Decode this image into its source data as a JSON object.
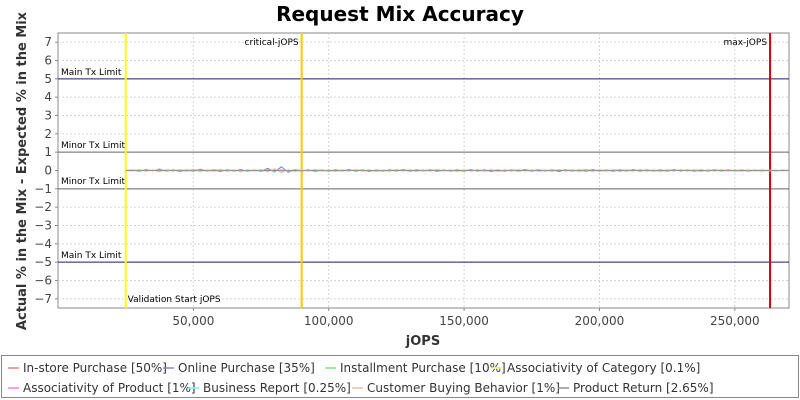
{
  "chart_data": {
    "type": "line",
    "title": "Request Mix Accuracy",
    "xlabel": "jOPS",
    "ylabel": "Actual % in the Mix - Expected % in the Mix",
    "xlim": [
      0,
      270000
    ],
    "ylim": [
      -7.5,
      7.5
    ],
    "xticks": [
      50000,
      100000,
      150000,
      200000,
      250000
    ],
    "xtick_labels": [
      "50,000",
      "100,000",
      "150,000",
      "200,000",
      "250,000"
    ],
    "yticks": [
      -7,
      -6,
      -5,
      -4,
      -3,
      -2,
      -1,
      0,
      1,
      2,
      3,
      4,
      5,
      6,
      7
    ],
    "ytick_labels": [
      "−7",
      "−6",
      "−5",
      "−4",
      "−3",
      "−2",
      "−1",
      "0",
      "1",
      "2",
      "3",
      "4",
      "5",
      "6",
      "7"
    ],
    "grid": true,
    "legend_position": "bottom",
    "hlines": [
      {
        "y": 5,
        "color": "#1f1f6e",
        "label": "Main Tx Limit"
      },
      {
        "y": 1,
        "color": "#666666",
        "label": "Minor Tx Limit"
      },
      {
        "y": -1,
        "color": "#666666",
        "label": "Minor Tx Limit"
      },
      {
        "y": -5,
        "color": "#1f1f6e",
        "label": "Main Tx Limit"
      }
    ],
    "vlines": [
      {
        "x": 25000,
        "color": "#ffff00",
        "label": "Validation Start jOPS",
        "label_pos": "bottom"
      },
      {
        "x": 90000,
        "color": "#ffc800",
        "label": "critical-jOPS",
        "label_pos": "top"
      },
      {
        "x": 263000,
        "color": "#dd0000",
        "label": "max-jOPS",
        "label_pos": "top"
      }
    ],
    "series": [
      {
        "name": "In-store Purchase [50%]",
        "color": "#f08080",
        "x_start": 25000,
        "x_end": 270000,
        "step": 2500,
        "values": [
          0.0,
          -0.02,
          0.05,
          -0.04,
          0.03,
          -0.06,
          0.05,
          -0.02,
          0.04,
          -0.03,
          0.06,
          -0.05,
          0.02,
          -0.04,
          0.05,
          -0.03,
          0.04,
          -0.06,
          0.03,
          -0.02,
          0.05,
          -0.04,
          0.06,
          -0.03,
          0.02,
          -0.05,
          0.04,
          -0.03,
          0.06,
          -0.04,
          0.03,
          -0.05,
          0.04,
          -0.02,
          0.05,
          -0.03,
          0.04,
          -0.06,
          0.03,
          -0.04,
          0.05,
          -0.02,
          0.04,
          -0.05,
          0.03,
          -0.04,
          0.06,
          -0.03,
          0.02,
          -0.05,
          0.04,
          -0.03,
          0.05,
          -0.04,
          0.03,
          -0.06,
          0.04,
          -0.02,
          0.05,
          -0.03,
          0.04,
          -0.05,
          0.03,
          -0.04,
          0.05,
          -0.02,
          0.04,
          -0.03,
          0.06,
          -0.05,
          0.03,
          -0.04,
          0.05,
          -0.02,
          0.04,
          -0.03,
          0.05,
          -0.04,
          0.03,
          -0.05,
          0.04,
          -0.02,
          0.05,
          -0.03,
          0.04,
          -0.05,
          0.03,
          -0.02,
          0.04,
          -0.03,
          0.02,
          -0.04,
          0.03,
          -0.02,
          0.03,
          -0.02,
          0.01,
          -0.01,
          0.0
        ]
      },
      {
        "name": "Online Purchase [35%]",
        "color": "#8080e0",
        "x_start": 25000,
        "x_end": 270000,
        "step": 2500,
        "values": [
          0.0,
          0.03,
          -0.05,
          0.06,
          -0.03,
          0.08,
          -0.04,
          0.05,
          -0.06,
          0.03,
          -0.05,
          0.07,
          -0.02,
          0.04,
          -0.06,
          0.05,
          -0.03,
          0.06,
          -0.05,
          0.03,
          -0.04,
          0.12,
          -0.08,
          0.2,
          -0.1,
          0.06,
          -0.04,
          0.05,
          -0.06,
          0.03,
          -0.05,
          0.04,
          -0.03,
          0.06,
          -0.05,
          0.04,
          -0.06,
          0.03,
          -0.04,
          0.05,
          -0.03,
          0.06,
          -0.05,
          0.04,
          -0.03,
          0.05,
          -0.06,
          0.03,
          -0.04,
          0.05,
          -0.03,
          0.06,
          -0.05,
          0.04,
          -0.06,
          0.03,
          -0.05,
          0.04,
          -0.03,
          0.06,
          -0.04,
          0.05,
          -0.03,
          0.04,
          -0.06,
          0.05,
          -0.03,
          0.04,
          -0.05,
          0.06,
          -0.04,
          0.03,
          -0.05,
          0.04,
          -0.03,
          0.06,
          -0.05,
          0.04,
          -0.03,
          0.05,
          -0.04,
          0.06,
          -0.03,
          0.04,
          -0.05,
          0.03,
          -0.04,
          0.05,
          -0.03,
          0.04,
          -0.02,
          0.03,
          -0.04,
          0.02,
          -0.03,
          0.02,
          -0.01,
          0.01,
          0.0
        ]
      },
      {
        "name": "Installment Purchase [10%]",
        "color": "#80e080",
        "x_start": 25000,
        "x_end": 270000,
        "step": 2500,
        "values": [
          0.0,
          0.02,
          -0.03,
          0.04,
          -0.02,
          0.05,
          -0.04,
          0.03,
          -0.05,
          0.02,
          -0.04,
          0.05,
          -0.03,
          0.06,
          -0.02,
          0.04,
          -0.05,
          0.03,
          -0.04,
          0.02,
          -0.06,
          0.05,
          -0.03,
          0.04,
          -0.02,
          0.05,
          -0.04,
          0.03,
          -0.05,
          0.02,
          -0.04,
          0.06,
          -0.03,
          0.04,
          -0.02,
          0.05,
          -0.04,
          0.03,
          -0.05,
          0.02,
          -0.04,
          0.05,
          -0.03,
          0.06,
          -0.02,
          0.04,
          -0.05,
          0.03,
          -0.04,
          0.02,
          -0.06,
          0.05,
          -0.03,
          0.04,
          -0.02,
          0.05,
          -0.04,
          0.03,
          -0.05,
          0.02,
          -0.04,
          0.06,
          -0.03,
          0.04,
          -0.02,
          0.05,
          -0.04,
          0.03,
          -0.05,
          0.02,
          -0.04,
          0.05,
          -0.03,
          0.06,
          -0.02,
          0.04,
          -0.05,
          0.03,
          -0.04,
          0.02,
          -0.05,
          0.04,
          -0.03,
          0.04,
          -0.02,
          0.05,
          -0.04,
          0.03,
          -0.04,
          0.02,
          -0.03,
          0.04,
          -0.02,
          0.03,
          -0.02,
          0.02,
          -0.01,
          0.01,
          0.0
        ]
      },
      {
        "name": "Associativity of Category [0.1%]",
        "color": "#ffff80",
        "x_start": 25000,
        "x_end": 270000,
        "step": 2500,
        "values": [
          0.0,
          0.01,
          -0.01,
          0.01,
          -0.02,
          0.01,
          -0.01,
          0.02,
          -0.01,
          0.01,
          -0.01,
          0.02,
          -0.01,
          0.01,
          -0.02,
          0.01,
          -0.01,
          0.01,
          -0.01,
          0.02,
          -0.01,
          0.01,
          -0.01,
          0.02,
          -0.01,
          0.01,
          -0.02,
          0.01,
          -0.01,
          0.01,
          -0.01,
          0.02,
          -0.01,
          0.01,
          -0.01,
          0.02,
          -0.01,
          0.01,
          -0.02,
          0.01,
          -0.01,
          0.01,
          -0.01,
          0.02,
          -0.01,
          0.01,
          -0.01,
          0.02,
          -0.01,
          0.01,
          -0.02,
          0.01,
          -0.01,
          0.01,
          -0.01,
          0.02,
          -0.01,
          0.01,
          -0.01,
          0.02,
          -0.01,
          0.01,
          -0.02,
          0.01,
          -0.01,
          0.01,
          -0.01,
          0.02,
          -0.01,
          0.01,
          -0.01,
          0.02,
          -0.01,
          0.01,
          -0.02,
          0.01,
          -0.01,
          0.01,
          -0.01,
          0.02,
          -0.01,
          0.01,
          -0.01,
          0.02,
          -0.01,
          0.01,
          -0.02,
          0.01,
          -0.01,
          0.01,
          -0.01,
          0.01,
          -0.01,
          0.01,
          -0.01,
          0.01,
          -0.01,
          0.01,
          0.0
        ]
      },
      {
        "name": "Associativity of Product [1%]",
        "color": "#f080f0",
        "x_start": 25000,
        "x_end": 270000,
        "step": 2500,
        "values": [
          0.0,
          -0.01,
          0.02,
          -0.01,
          0.01,
          -0.02,
          0.01,
          -0.01,
          0.02,
          -0.01,
          0.01,
          -0.02,
          0.01,
          -0.01,
          0.02,
          -0.01,
          0.01,
          -0.02,
          0.01,
          -0.01,
          0.02,
          -0.01,
          0.01,
          -0.02,
          0.01,
          -0.01,
          0.02,
          -0.01,
          0.01,
          -0.02,
          0.01,
          -0.01,
          0.02,
          -0.01,
          0.01,
          -0.02,
          0.01,
          -0.01,
          0.02,
          -0.01,
          0.01,
          -0.02,
          0.01,
          -0.01,
          0.02,
          -0.01,
          0.01,
          -0.02,
          0.01,
          -0.01,
          0.02,
          -0.01,
          0.01,
          -0.02,
          0.01,
          -0.01,
          0.02,
          -0.01,
          0.01,
          -0.02,
          0.01,
          -0.01,
          0.02,
          -0.01,
          0.01,
          -0.02,
          0.01,
          -0.01,
          0.02,
          -0.01,
          0.01,
          -0.02,
          0.01,
          -0.01,
          0.02,
          -0.01,
          0.01,
          -0.02,
          0.01,
          -0.01,
          0.02,
          -0.01,
          0.01,
          -0.02,
          0.01,
          -0.01,
          0.02,
          -0.01,
          0.01,
          -0.02,
          0.01,
          -0.01,
          0.02,
          -0.01,
          0.01,
          -0.01,
          0.01,
          -0.01,
          0.0
        ]
      },
      {
        "name": "Business Report [0.25%]",
        "color": "#80f0f0",
        "x_start": 25000,
        "x_end": 270000,
        "step": 2500,
        "values": [
          0.0,
          0.02,
          -0.02,
          0.03,
          -0.01,
          0.02,
          -0.03,
          0.02,
          -0.02,
          0.03,
          -0.02,
          0.01,
          -0.03,
          0.02,
          -0.02,
          0.03,
          -0.01,
          0.02,
          -0.03,
          0.02,
          -0.02,
          0.03,
          -0.02,
          0.01,
          -0.03,
          0.02,
          -0.02,
          0.03,
          -0.01,
          0.02,
          -0.03,
          0.02,
          -0.02,
          0.03,
          -0.02,
          0.01,
          -0.03,
          0.02,
          -0.02,
          0.03,
          -0.01,
          0.02,
          -0.03,
          0.02,
          -0.02,
          0.03,
          -0.02,
          0.01,
          -0.03,
          0.02,
          -0.02,
          0.03,
          -0.01,
          0.02,
          -0.03,
          0.02,
          -0.02,
          0.03,
          -0.02,
          0.01,
          -0.03,
          0.02,
          -0.02,
          0.03,
          -0.01,
          0.02,
          -0.03,
          0.02,
          -0.02,
          0.03,
          -0.02,
          0.01,
          -0.03,
          0.02,
          -0.02,
          0.03,
          -0.01,
          0.02,
          -0.03,
          0.02,
          -0.02,
          0.03,
          -0.02,
          0.01,
          -0.03,
          0.02,
          -0.02,
          0.03,
          -0.01,
          0.02,
          -0.02,
          0.02,
          -0.02,
          0.02,
          -0.01,
          0.01,
          -0.01,
          0.01,
          0.0
        ]
      },
      {
        "name": "Customer Buying Behavior [1%]",
        "color": "#f0c0a0",
        "x_start": 25000,
        "x_end": 270000,
        "step": 2500,
        "values": [
          0.0,
          -0.03,
          0.06,
          -0.05,
          0.04,
          -0.07,
          0.05,
          -0.04,
          0.06,
          -0.05,
          0.04,
          -0.06,
          0.05,
          -0.03,
          0.06,
          -0.05,
          0.04,
          -0.07,
          0.05,
          -0.04,
          0.06,
          -0.08,
          0.1,
          -0.12,
          0.05,
          -0.06,
          0.04,
          -0.05,
          0.06,
          -0.04,
          0.05,
          -0.06,
          0.04,
          -0.05,
          0.06,
          -0.04,
          0.05,
          -0.06,
          0.04,
          -0.05,
          0.06,
          -0.04,
          0.05,
          -0.06,
          0.04,
          -0.05,
          0.06,
          -0.04,
          0.05,
          -0.06,
          0.04,
          -0.05,
          0.06,
          -0.04,
          0.05,
          -0.06,
          0.04,
          -0.05,
          0.06,
          -0.04,
          0.05,
          -0.06,
          0.04,
          -0.05,
          0.06,
          -0.04,
          0.05,
          -0.06,
          0.04,
          -0.05,
          0.06,
          -0.04,
          0.05,
          -0.06,
          0.04,
          -0.05,
          0.06,
          -0.04,
          0.05,
          -0.06,
          0.04,
          -0.05,
          0.06,
          -0.04,
          0.05,
          -0.06,
          0.04,
          -0.05,
          0.06,
          -0.04,
          0.05,
          -0.04,
          0.03,
          -0.03,
          0.02,
          -0.02,
          0.01,
          -0.01,
          0.0
        ]
      },
      {
        "name": "Product Return [2.65%]",
        "color": "#909090",
        "x_start": 25000,
        "x_end": 270000,
        "step": 2500,
        "values": [
          0.0,
          0.01,
          -0.02,
          0.02,
          -0.01,
          0.02,
          -0.02,
          0.01,
          -0.02,
          0.02,
          -0.01,
          0.02,
          -0.02,
          0.01,
          -0.02,
          0.02,
          -0.01,
          0.02,
          -0.02,
          0.01,
          -0.02,
          0.02,
          -0.01,
          0.02,
          -0.02,
          0.01,
          -0.02,
          0.02,
          -0.01,
          0.02,
          -0.02,
          0.01,
          -0.02,
          0.02,
          -0.01,
          0.02,
          -0.02,
          0.01,
          -0.02,
          0.02,
          -0.01,
          0.02,
          -0.02,
          0.01,
          -0.02,
          0.02,
          -0.01,
          0.02,
          -0.02,
          0.01,
          -0.02,
          0.02,
          -0.01,
          0.02,
          -0.02,
          0.01,
          -0.02,
          0.02,
          -0.01,
          0.02,
          -0.02,
          0.01,
          -0.02,
          0.02,
          -0.01,
          0.02,
          -0.02,
          0.01,
          -0.02,
          0.02,
          -0.01,
          0.02,
          -0.02,
          0.01,
          -0.02,
          0.02,
          -0.01,
          0.02,
          -0.02,
          0.01,
          -0.02,
          0.02,
          -0.01,
          0.02,
          -0.02,
          0.01,
          -0.02,
          0.02,
          -0.01,
          0.02,
          -0.02,
          0.01,
          -0.02,
          0.01,
          -0.01,
          0.01,
          -0.01,
          0.01,
          0.0
        ]
      }
    ]
  }
}
